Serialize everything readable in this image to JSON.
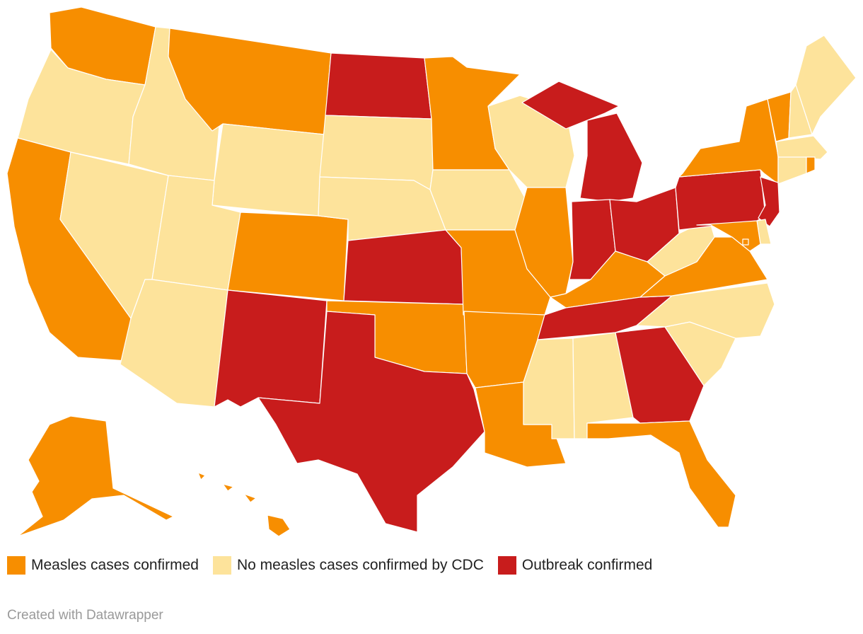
{
  "colors": {
    "measles": "#f78e00",
    "none": "#fde39b",
    "outbreak": "#c81c1c",
    "border": "#ffffff"
  },
  "legend": [
    {
      "key": "measles",
      "label": "Measles cases confirmed"
    },
    {
      "key": "none",
      "label": "No measles cases confirmed by CDC"
    },
    {
      "key": "outbreak",
      "label": "Outbreak confirmed"
    }
  ],
  "credit": "Created with Datawrapper",
  "states": {
    "WA": "measles",
    "OR": "none",
    "CA": "measles",
    "NV": "none",
    "ID": "none",
    "MT": "measles",
    "WY": "none",
    "UT": "none",
    "AZ": "none",
    "CO": "measles",
    "NM": "outbreak",
    "ND": "outbreak",
    "SD": "none",
    "NE": "none",
    "KS": "outbreak",
    "OK": "measles",
    "TX": "outbreak",
    "MN": "measles",
    "IA": "none",
    "MO": "measles",
    "AR": "measles",
    "LA": "measles",
    "WI": "none",
    "IL": "measles",
    "MI": "outbreak",
    "IN": "outbreak",
    "OH": "outbreak",
    "KY": "measles",
    "TN": "outbreak",
    "MS": "none",
    "AL": "none",
    "GA": "outbreak",
    "FL": "measles",
    "SC": "none",
    "NC": "none",
    "VA": "measles",
    "WV": "none",
    "PA": "outbreak",
    "NY": "measles",
    "VT": "measles",
    "NH": "none",
    "ME": "none",
    "MA": "none",
    "CT": "none",
    "RI": "measles",
    "NJ": "outbreak",
    "DE": "none",
    "MD": "measles",
    "DC": "measles",
    "AK": "measles",
    "HI": "measles"
  }
}
